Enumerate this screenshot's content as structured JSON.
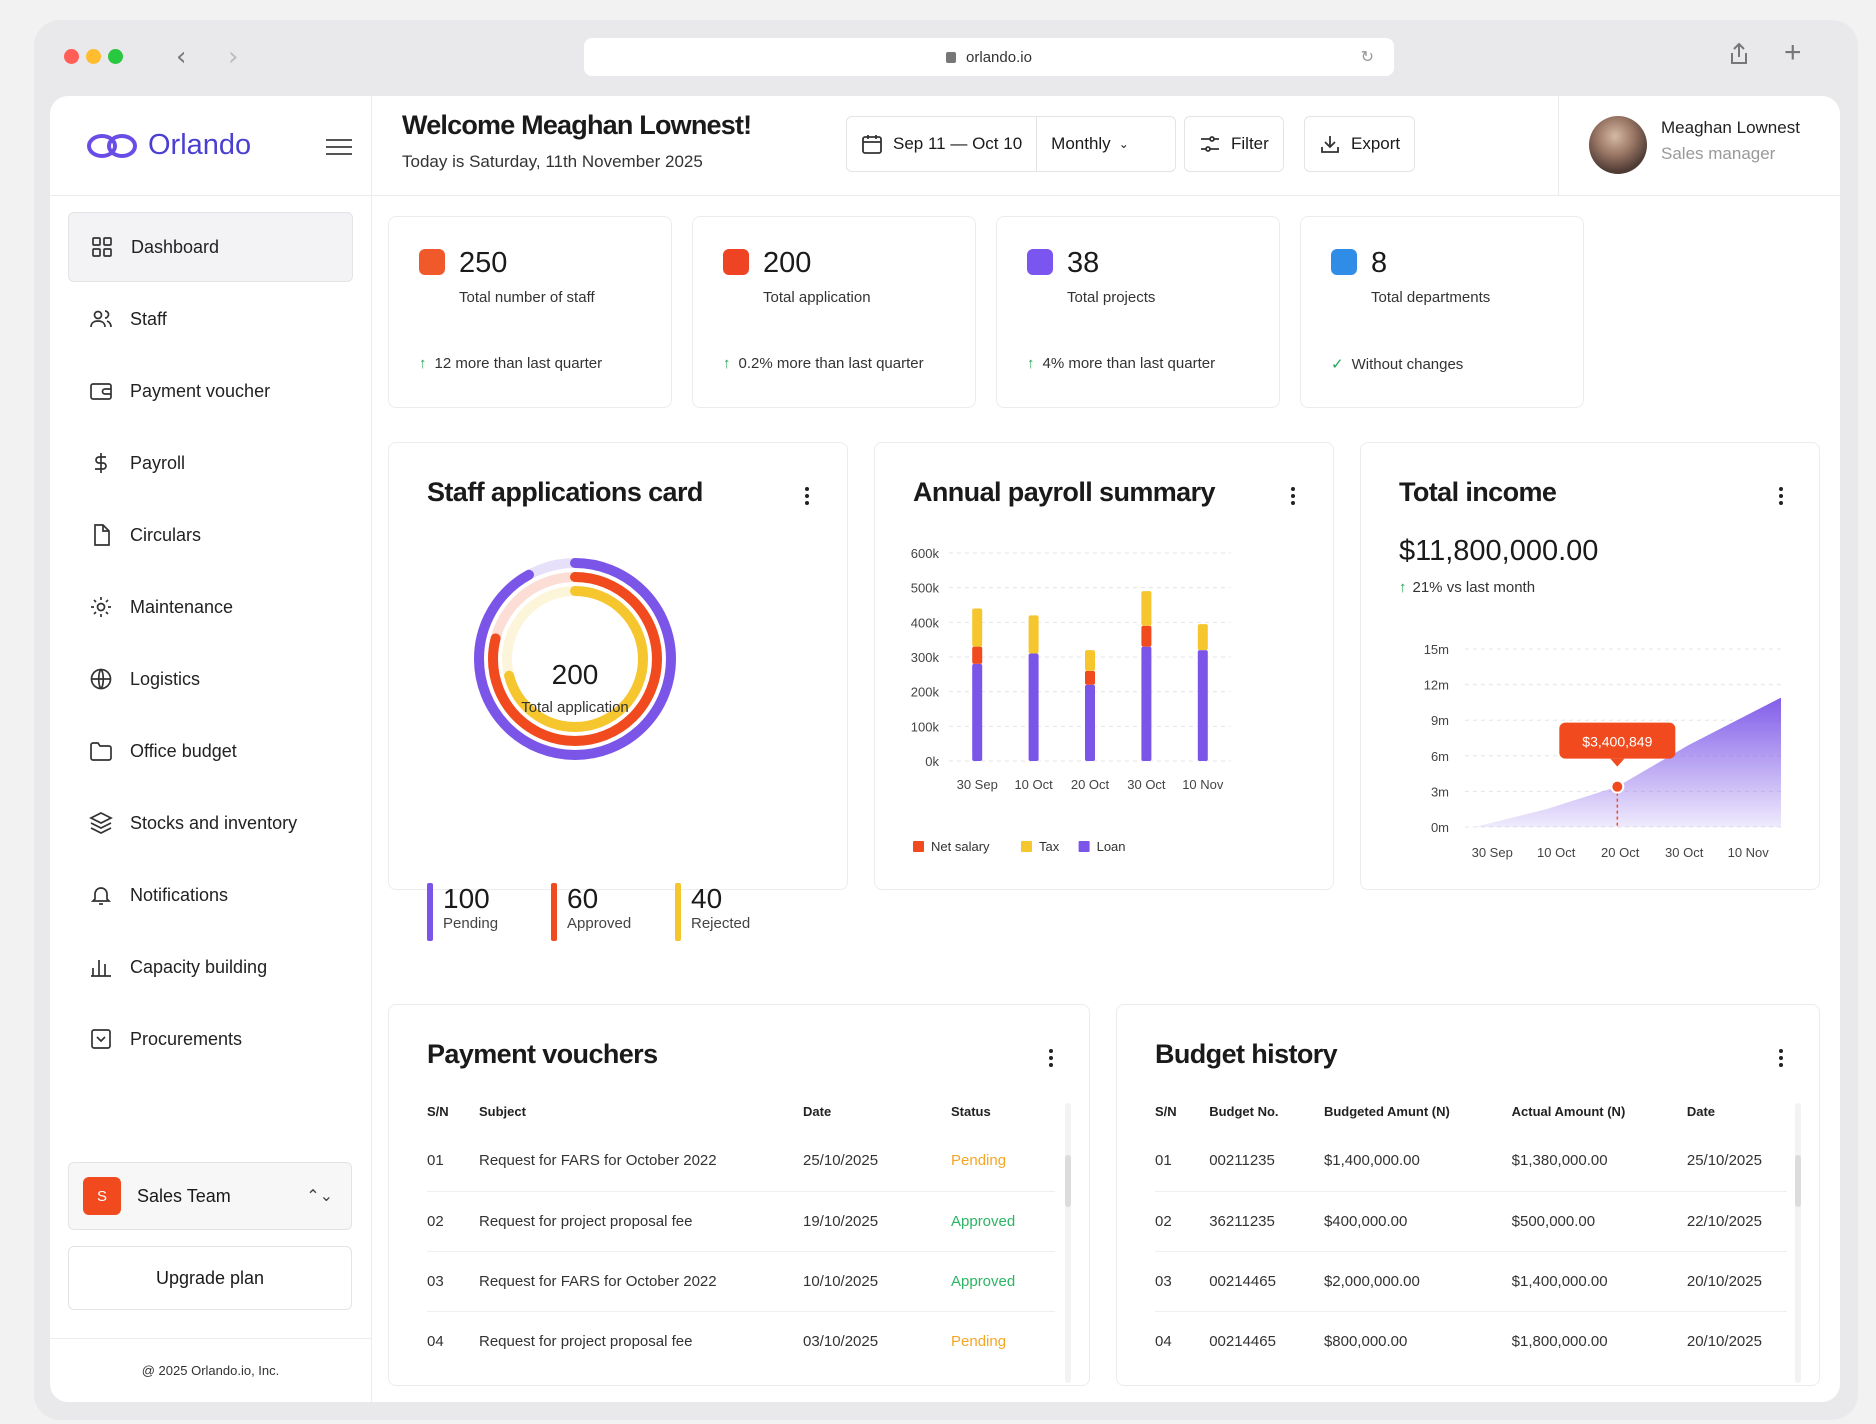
{
  "browser": {
    "url": "orlando.io"
  },
  "brand": {
    "name": "Orlando"
  },
  "sidebar": {
    "items": [
      {
        "label": "Dashboard",
        "icon": "grid-icon"
      },
      {
        "label": "Staff",
        "icon": "users-icon"
      },
      {
        "label": "Payment voucher",
        "icon": "wallet-icon"
      },
      {
        "label": "Payroll",
        "icon": "dollar-icon"
      },
      {
        "label": "Circulars",
        "icon": "file-icon"
      },
      {
        "label": "Maintenance",
        "icon": "gear-icon"
      },
      {
        "label": "Logistics",
        "icon": "globe-icon"
      },
      {
        "label": "Office budget",
        "icon": "folder-icon"
      },
      {
        "label": "Stocks and inventory",
        "icon": "layers-icon"
      },
      {
        "label": "Notifications",
        "icon": "bell-icon"
      },
      {
        "label": "Capacity building",
        "icon": "bar-chart-icon"
      },
      {
        "label": "Procurements",
        "icon": "inbox-icon"
      }
    ],
    "team": {
      "badge": "S",
      "label": "Sales Team"
    },
    "upgrade": "Upgrade plan",
    "copyright": "@ 2025 Orlando.io, Inc."
  },
  "header": {
    "welcome": "Welcome Meaghan Lownest!",
    "today": "Today is Saturday, 11th November 2025",
    "date_range": "Sep 11 — Oct 10",
    "period": "Monthly",
    "filter": "Filter",
    "export": "Export"
  },
  "profile": {
    "name": "Meaghan Lownest",
    "role": "Sales manager"
  },
  "stats": [
    {
      "value": "250",
      "label": "Total number of staff",
      "delta": "12 more than last quarter",
      "color": "#f05a2a",
      "delta_icon": "up"
    },
    {
      "value": "200",
      "label": "Total application",
      "delta": "0.2% more than last quarter",
      "color": "#ef4423",
      "delta_icon": "up"
    },
    {
      "value": "38",
      "label": "Total projects",
      "delta": "4% more than last quarter",
      "color": "#7b55f0",
      "delta_icon": "up"
    },
    {
      "value": "8",
      "label": "Total departments",
      "delta": "Without changes",
      "color": "#2f8de8",
      "delta_icon": "check"
    }
  ],
  "staff_card": {
    "title": "Staff applications card",
    "center_value": "200",
    "center_label": "Total application",
    "legend": [
      {
        "value": "100",
        "label": "Pending",
        "color": "#7b55e8"
      },
      {
        "value": "60",
        "label": "Approved",
        "color": "#f04a1e"
      },
      {
        "value": "40",
        "label": "Rejected",
        "color": "#f5c62e"
      }
    ]
  },
  "payroll_card": {
    "title": "Annual payroll summary"
  },
  "income_card": {
    "title": "Total income",
    "amount": "$11,800,000.00",
    "delta": "21% vs last month",
    "tooltip": "$3,400,849"
  },
  "chart_data": [
    {
      "type": "donut",
      "title": "Staff applications card",
      "series": [
        {
          "name": "Pending",
          "values": [
            100
          ],
          "color": "#7b55e8"
        },
        {
          "name": "Approved",
          "values": [
            60
          ],
          "color": "#f04a1e"
        },
        {
          "name": "Rejected",
          "values": [
            40
          ],
          "color": "#f5c62e"
        }
      ]
    },
    {
      "type": "bar",
      "title": "Annual payroll summary",
      "stacked": true,
      "categories": [
        "30 Sep",
        "10 Oct",
        "20 Oct",
        "30 Oct",
        "10 Nov"
      ],
      "y_ticks": [
        "0k",
        "100k",
        "200k",
        "300k",
        "400k",
        "500k",
        "600k"
      ],
      "ylim": [
        0,
        600
      ],
      "series": [
        {
          "name": "Loan",
          "color": "#7b55e8",
          "values": [
            280,
            310,
            220,
            330,
            320
          ]
        },
        {
          "name": "Net salary",
          "color": "#f04a1e",
          "values": [
            50,
            0,
            40,
            60,
            0
          ]
        },
        {
          "name": "Tax",
          "color": "#f5c62e",
          "values": [
            110,
            110,
            60,
            100,
            75
          ]
        }
      ],
      "legend_position": "bottom-left",
      "grid": true
    },
    {
      "type": "area",
      "title": "Total income",
      "categories": [
        "30 Sep",
        "10 Oct",
        "20 Oct",
        "30 Oct",
        "10 Nov"
      ],
      "y_ticks": [
        "0m",
        "3m",
        "6m",
        "9m",
        "12m",
        "15m"
      ],
      "ylim": [
        0,
        15
      ],
      "x": [
        0,
        1,
        2,
        3,
        4.3
      ],
      "y": [
        0,
        1.5,
        3.4,
        6.9,
        10.9
      ],
      "highlight": {
        "x": "20 Oct",
        "y": 3.4,
        "label": "$3,400,849"
      },
      "color": "#7b55e8",
      "grid": true
    }
  ],
  "vouchers": {
    "title": "Payment vouchers",
    "columns": [
      "S/N",
      "Subject",
      "Date",
      "Status"
    ],
    "rows": [
      {
        "sn": "01",
        "subject": "Request for FARS for October 2022",
        "date": "25/10/2025",
        "status": "Pending"
      },
      {
        "sn": "02",
        "subject": "Request for project proposal fee",
        "date": "19/10/2025",
        "status": "Approved"
      },
      {
        "sn": "03",
        "subject": "Request for FARS for October 2022",
        "date": "10/10/2025",
        "status": "Approved"
      },
      {
        "sn": "04",
        "subject": "Request for project proposal fee",
        "date": "03/10/2025",
        "status": "Pending"
      }
    ],
    "status_colors": {
      "Pending": "#f5a623",
      "Approved": "#2bb563"
    }
  },
  "budget": {
    "title": "Budget history",
    "columns": [
      "S/N",
      "Budget No.",
      "Budgeted Amunt (N)",
      "Actual Amount (N)",
      "Date"
    ],
    "rows": [
      {
        "sn": "01",
        "no": "00211235",
        "budgeted": "$1,400,000.00",
        "actual": "$1,380,000.00",
        "date": "25/10/2025"
      },
      {
        "sn": "02",
        "no": "36211235",
        "budgeted": "$400,000.00",
        "actual": "$500,000.00",
        "date": "22/10/2025"
      },
      {
        "sn": "03",
        "no": "00214465",
        "budgeted": "$2,000,000.00",
        "actual": "$1,400,000.00",
        "date": "20/10/2025"
      },
      {
        "sn": "04",
        "no": "00214465",
        "budgeted": "$800,000.00",
        "actual": "$1,800,000.00",
        "date": "20/10/2025"
      }
    ]
  }
}
